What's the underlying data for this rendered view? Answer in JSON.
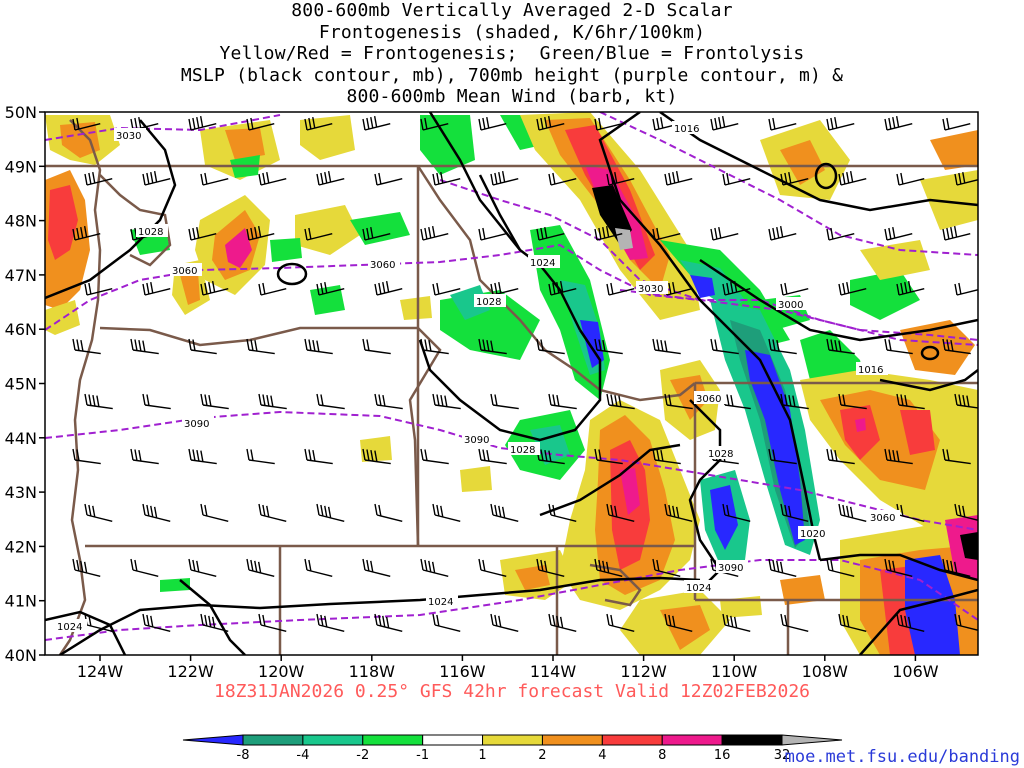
{
  "header": {
    "line1": "800-600mb Vertically Averaged 2-D Scalar",
    "line2": "Frontogenesis (shaded, K/6hr/100km)",
    "line3": "Yellow/Red = Frontogenesis;  Green/Blue = Frontolysis",
    "line4": "MSLP (black contour, mb), 700mb height (purple contour, m) &",
    "line5": "800-600mb Mean Wind (barb, kt)"
  },
  "axes": {
    "lat_labels": [
      "50N",
      "49N",
      "48N",
      "47N",
      "46N",
      "45N",
      "44N",
      "43N",
      "42N",
      "41N",
      "40N"
    ],
    "lon_labels": [
      "124W",
      "122W",
      "120W",
      "118W",
      "116W",
      "114W",
      "112W",
      "110W",
      "108W",
      "106W"
    ]
  },
  "contour_labels": {
    "mslp": [
      "1016",
      "1024",
      "1028",
      "1028",
      "1028",
      "1016",
      "1028",
      "1020",
      "1024",
      "1024",
      "1024"
    ],
    "height": [
      "3030",
      "3060",
      "3060",
      "3030",
      "3000",
      "3060",
      "3090",
      "3090",
      "3060",
      "3090"
    ]
  },
  "valid_time": "18Z31JAN2026 0.25° GFS 42hr forecast Valid 12Z02FEB2026",
  "colorbar": {
    "labels": [
      "-8",
      "-4",
      "-2",
      "-1",
      "1",
      "2",
      "4",
      "8",
      "16",
      "32"
    ],
    "colors": [
      "#2828ff",
      "#1e9e7a",
      "#19c78c",
      "#14e03c",
      "#ffffff",
      "#e6d93a",
      "#f0901e",
      "#f83c3c",
      "#ee1a8c",
      "#000000",
      "#b4b4b4"
    ]
  },
  "colors": {
    "state_border": "#7a5a4a",
    "mslp": "#000000",
    "height": "#a020d0",
    "valid_text": "#ff5a5a",
    "credit": "#2a3ad8"
  },
  "credit": "moe.met.fsu.edu/banding"
}
